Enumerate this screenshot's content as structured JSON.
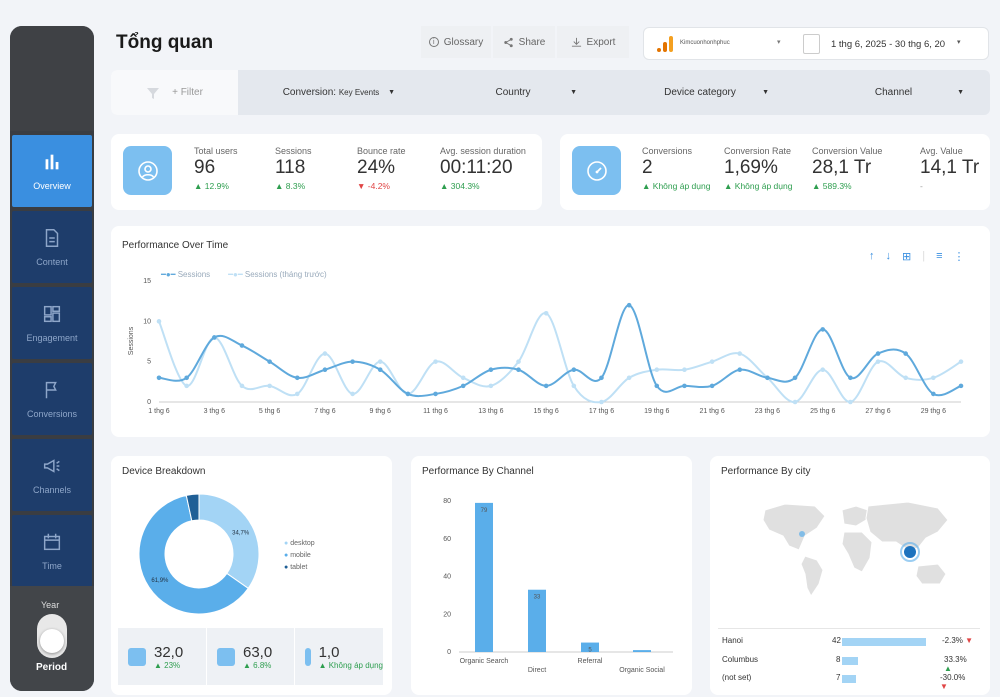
{
  "page": {
    "title": "Tổng quan"
  },
  "toolbar": {
    "glossary": "Glossary",
    "share": "Share",
    "export": "Export"
  },
  "property": {
    "name": "Kimcuonhonhphuc"
  },
  "date_range": "1 thg 6, 2025 - 30 thg 6, 20",
  "filters": {
    "filter_label": "+ Filter",
    "conversion_prefix": "Conversion:",
    "conversion_value": "Key Events",
    "country": "Country",
    "device": "Device category",
    "channel": "Channel"
  },
  "sidebar": {
    "items": [
      {
        "label": "Overview",
        "icon": "bar-chart-icon"
      },
      {
        "label": "Content",
        "icon": "document-icon"
      },
      {
        "label": "Engagement",
        "icon": "grid-icon"
      },
      {
        "label": "Conversions",
        "icon": "flag-icon"
      },
      {
        "label": "Channels",
        "icon": "megaphone-icon"
      },
      {
        "label": "Time",
        "icon": "calendar-icon"
      }
    ],
    "year": "Year",
    "period": "Period"
  },
  "kpis1": [
    {
      "label": "Total users",
      "value": "96",
      "delta": "12.9%",
      "dir": "up"
    },
    {
      "label": "Sessions",
      "value": "118",
      "delta": "8.3%",
      "dir": "up"
    },
    {
      "label": "Bounce rate",
      "value": "24%",
      "delta": "-4.2%",
      "dir": "down"
    },
    {
      "label": "Avg. session duration",
      "value": "00:11:20",
      "delta": "304.3%",
      "dir": "up"
    }
  ],
  "kpis2": [
    {
      "label": "Conversions",
      "value": "2",
      "delta": "Không áp dụng",
      "dir": "up"
    },
    {
      "label": "Conversion Rate",
      "value": "1,69%",
      "delta": "Không áp dụng",
      "dir": "up"
    },
    {
      "label": "Conversion Value",
      "value": "28,1 Tr",
      "delta": "589.3%",
      "dir": "up"
    },
    {
      "label": "Avg. Value",
      "value": "14,1 Tr",
      "delta": "-",
      "dir": "none"
    }
  ],
  "colors": {
    "accent": "#3a8fe0",
    "series_current": "#5fa9dc",
    "series_previous": "#bfe0f5",
    "up": "#2e9e4f",
    "down": "#e04545",
    "nav_bg": "#1e3d6b"
  },
  "chart_data": [
    {
      "type": "line",
      "title": "Performance Over Time",
      "ylabel": "Sessions",
      "ylim": [
        0,
        15
      ],
      "yticks": [
        0,
        5,
        10,
        15
      ],
      "x": [
        "1 thg 6",
        "2 thg 6",
        "3 thg 6",
        "4 thg 6",
        "5 thg 6",
        "6 thg 6",
        "7 thg 6",
        "8 thg 6",
        "9 thg 6",
        "10 thg 6",
        "11 thg 6",
        "12 thg 6",
        "13 thg 6",
        "14 thg 6",
        "15 thg 6",
        "16 thg 6",
        "17 thg 6",
        "18 thg 6",
        "19 thg 6",
        "20 thg 6",
        "21 thg 6",
        "22 thg 6",
        "23 thg 6",
        "24 thg 6",
        "25 thg 6",
        "26 thg 6",
        "27 thg 6",
        "28 thg 6",
        "29 thg 6",
        "30 thg 6"
      ],
      "xtick_labels": [
        "1 thg 6",
        "3 thg 6",
        "5 thg 6",
        "7 thg 6",
        "9 thg 6",
        "11 thg 6",
        "13 thg 6",
        "15 thg 6",
        "17 thg 6",
        "19 thg 6",
        "21 thg 6",
        "23 thg 6",
        "25 thg 6",
        "27 thg 6",
        "29 thg 6"
      ],
      "series": [
        {
          "name": "Sessions",
          "values": [
            3,
            3,
            8,
            7,
            5,
            3,
            4,
            5,
            4,
            1,
            1,
            2,
            4,
            4,
            2,
            4,
            3,
            12,
            2,
            2,
            2,
            4,
            3,
            3,
            9,
            3,
            6,
            6,
            1,
            2
          ]
        },
        {
          "name": "Sessions (tháng trước)",
          "values": [
            10,
            2,
            8,
            2,
            2,
            1,
            6,
            1,
            5,
            1,
            5,
            3,
            2,
            5,
            11,
            2,
            0,
            3,
            4,
            4,
            5,
            6,
            3,
            0,
            4,
            0,
            5,
            3,
            3,
            5
          ]
        }
      ]
    },
    {
      "type": "pie",
      "title": "Device Breakdown",
      "categories": [
        "desktop",
        "mobile",
        "tablet"
      ],
      "values": [
        34.7,
        61.9,
        3.4
      ],
      "data_labels": [
        "34,7%",
        "61,9%",
        ""
      ],
      "colors": [
        "#a3d4f5",
        "#5aaeea",
        "#1f5f96"
      ]
    },
    {
      "type": "bar",
      "title": "Performance By Channel",
      "categories": [
        "Organic Search",
        "Direct",
        "Referral",
        "Organic Social"
      ],
      "values": [
        79,
        33,
        5,
        1
      ],
      "data_labels": [
        "79",
        "33",
        "5",
        ""
      ],
      "ylim": [
        0,
        80
      ],
      "yticks": [
        0,
        20,
        40,
        60,
        80
      ]
    }
  ],
  "device_summary": [
    {
      "icon": "desktop-icon",
      "value": "32,0",
      "delta": "23%"
    },
    {
      "icon": "mobile-icon",
      "value": "63,0",
      "delta": "6.8%"
    },
    {
      "icon": "tablet-icon",
      "value": "1,0",
      "delta": "Không áp dụng"
    }
  ],
  "city": {
    "title": "Performance By city",
    "rows": [
      {
        "name": "Hanoi",
        "value": "42",
        "fraction": 1.0,
        "delta": "-2.3%",
        "dir": "down"
      },
      {
        "name": "Columbus",
        "value": "8",
        "fraction": 0.19,
        "delta": "33.3%",
        "dir": "up"
      },
      {
        "name": "(not set)",
        "value": "7",
        "fraction": 0.17,
        "delta": "-30.0%",
        "dir": "down"
      }
    ]
  }
}
